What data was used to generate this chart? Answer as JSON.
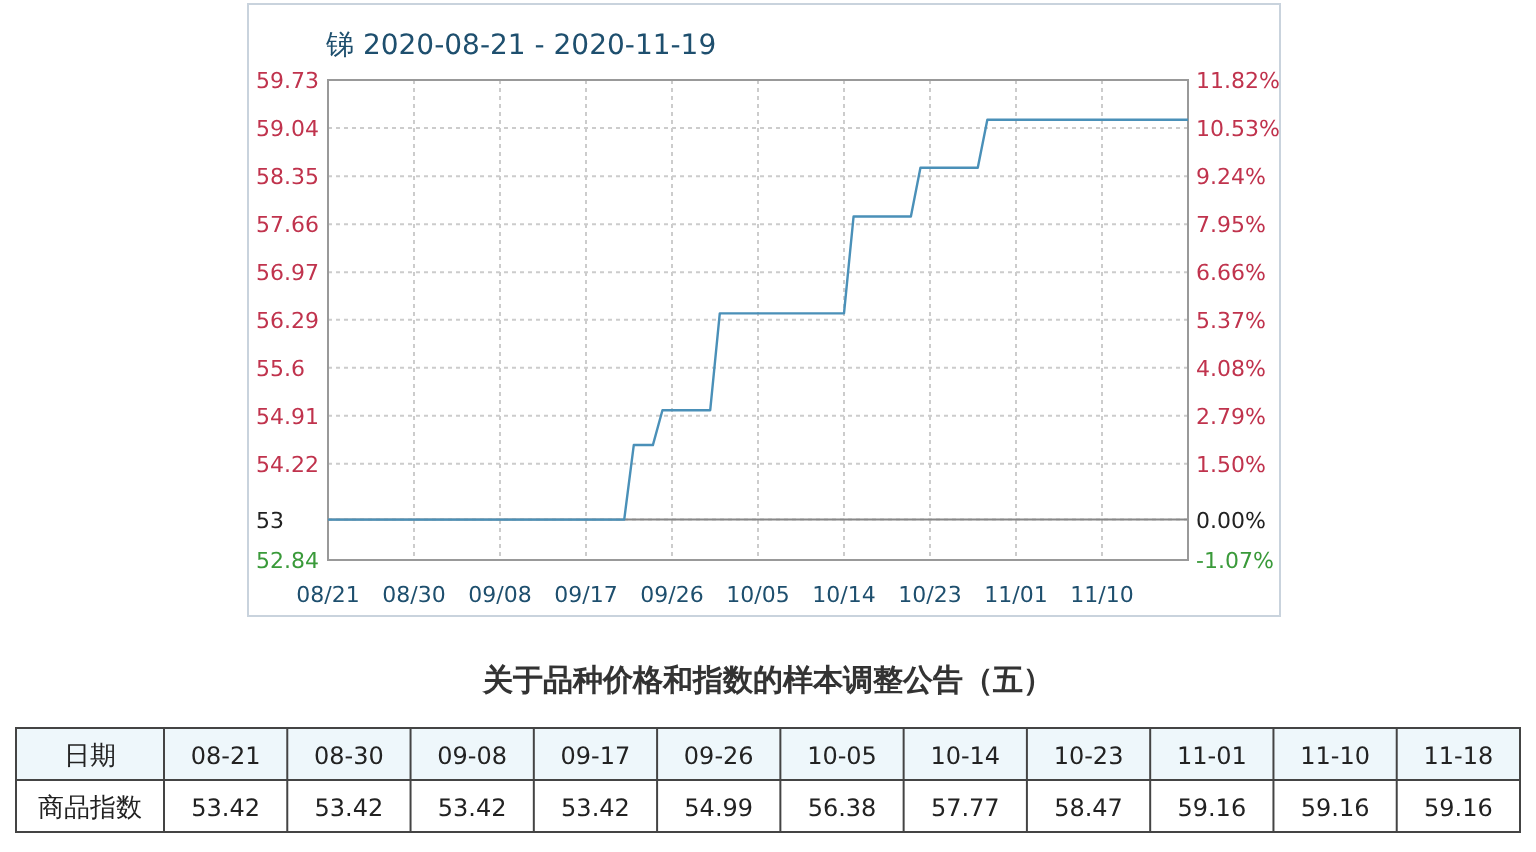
{
  "chart_data": [
    {
      "type": "line",
      "title": "锑 2020-08-21 - 2020-11-19",
      "x": [
        "2020-08-21",
        "2020-09-21",
        "2020-09-22",
        "2020-09-24",
        "2020-09-25",
        "2020-09-30",
        "2020-10-01",
        "2020-10-14",
        "2020-10-15",
        "2020-10-21",
        "2020-10-22",
        "2020-10-28",
        "2020-10-29",
        "2020-11-19"
      ],
      "series": [
        {
          "color": "#4a90b8",
          "values": [
            53.42,
            53.42,
            54.49,
            54.49,
            54.99,
            54.99,
            56.38,
            56.38,
            57.77,
            57.77,
            58.47,
            58.47,
            59.16,
            59.16
          ]
        }
      ],
      "xlim": [
        "2020-08-21",
        "2020-11-19"
      ],
      "xticks": [
        {
          "value": "2020-08-21",
          "label": "08/21"
        },
        {
          "value": "2020-08-30",
          "label": "08/30"
        },
        {
          "value": "2020-09-08",
          "label": "09/08"
        },
        {
          "value": "2020-09-17",
          "label": "09/17"
        },
        {
          "value": "2020-09-26",
          "label": "09/26"
        },
        {
          "value": "2020-10-05",
          "label": "10/05"
        },
        {
          "value": "2020-10-14",
          "label": "10/14"
        },
        {
          "value": "2020-10-23",
          "label": "10/23"
        },
        {
          "value": "2020-11-01",
          "label": "11/01"
        },
        {
          "value": "2020-11-10",
          "label": "11/10"
        }
      ],
      "ylim": [
        52.84,
        59.73
      ],
      "yticks": [
        52.84,
        {
          "value": 53.42,
          "label": "53"
        },
        54.22,
        54.91,
        55.6,
        56.29,
        56.97,
        57.66,
        58.35,
        59.04,
        59.73
      ],
      "y2lim": [
        -1.07,
        11.82
      ],
      "y2ticks": [
        {
          "value": -1.07,
          "label": "-1.07%"
        },
        {
          "value": 0,
          "label": "0.00%"
        },
        {
          "value": 1.5,
          "label": "1.50%"
        },
        {
          "value": 2.79,
          "label": "2.79%"
        },
        {
          "value": 4.08,
          "label": "4.08%"
        },
        {
          "value": 5.37,
          "label": "5.37%"
        },
        {
          "value": 6.66,
          "label": "6.66%"
        },
        {
          "value": 7.95,
          "label": "7.95%"
        },
        {
          "value": 9.24,
          "label": "9.24%"
        },
        {
          "value": 10.53,
          "label": "10.53%"
        },
        {
          "value": 11.82,
          "label": "11.82%"
        }
      ],
      "ref_lines": [
        {
          "axis": "y",
          "value": 53.42,
          "color": "#888888"
        }
      ],
      "grid": true,
      "marker": "none",
      "line_style": "solid"
    },
    {
      "type": "other",
      "title": "关于品种价格和指数的样本调整公告（五）",
      "annotations": [
        "日期",
        "商品指数"
      ],
      "categories": [
        "08-21",
        "08-30",
        "09-08",
        "09-17",
        "09-26",
        "10-05",
        "10-14",
        "10-23",
        "11-01",
        "11-10",
        "11-18"
      ],
      "values": [
        53.42,
        53.42,
        53.42,
        53.42,
        54.99,
        56.38,
        57.77,
        58.47,
        59.16,
        59.16,
        59.16
      ],
      "data_labels": true
    }
  ]
}
